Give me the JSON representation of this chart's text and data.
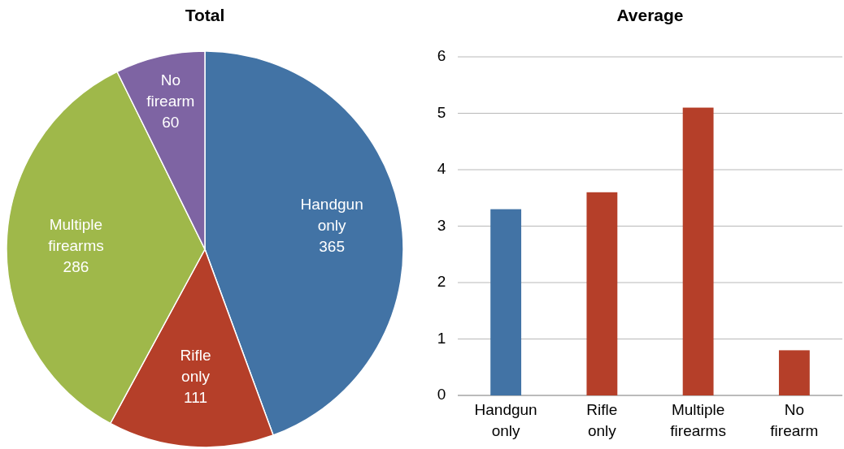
{
  "chart_data": [
    {
      "type": "pie",
      "title": "Total",
      "categories": [
        "Handgun only",
        "Rifle only",
        "Multiple firearms",
        "No firearm"
      ],
      "values": [
        365,
        111,
        286,
        60
      ],
      "colors": [
        "#4273a5",
        "#b53f29",
        "#9fb84a",
        "#7e64a3"
      ],
      "data_labels": true
    },
    {
      "type": "bar",
      "title": "Average",
      "categories": [
        "Handgun only",
        "Rifle only",
        "Multiple firearms",
        "No firearm"
      ],
      "values": [
        3.3,
        3.6,
        5.1,
        0.8
      ],
      "colors": [
        "#4273a5",
        "#b53f29",
        "#b53f29",
        "#b53f29"
      ],
      "ylim": [
        0,
        6
      ],
      "yticks": [
        0,
        1,
        2,
        3,
        4,
        5,
        6
      ],
      "grid": "y"
    }
  ]
}
